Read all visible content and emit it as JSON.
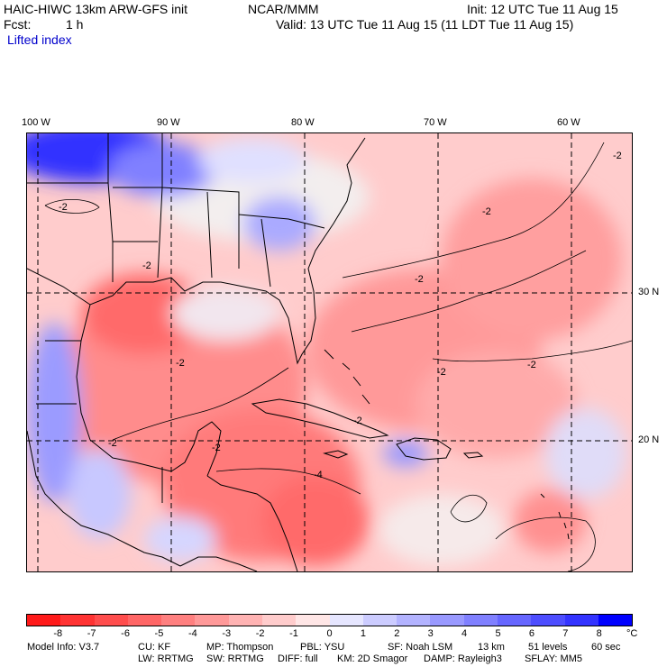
{
  "header": {
    "model": "HAIC-HIWC 13km ARW-GFS init",
    "org": "NCAR/MMM",
    "init": "Init: 12 UTC Tue 11 Aug 15",
    "fcst_label": "Fcst:",
    "fcst_value": "1 h",
    "valid": "Valid: 13 UTC Tue 11 Aug 15 (11 LDT Tue 11 Aug 15)",
    "field": "Lifted index"
  },
  "map": {
    "lon_labels": [
      "100 W",
      "90 W",
      "80 W",
      "70 W",
      "60 W"
    ],
    "lat_labels": [
      "30 N",
      "20 N"
    ],
    "contour_labels": [
      "-2",
      "-2",
      "-2",
      "-2",
      "-2",
      "-2",
      "-2",
      "-2",
      "-2",
      "-2",
      "-4",
      "-2"
    ],
    "colors": {
      "land_line": "#000000",
      "grid": "#000000"
    }
  },
  "colorbar": {
    "ticks": [
      "-8",
      "-7",
      "-6",
      "-5",
      "-4",
      "-3",
      "-2",
      "-1",
      "0",
      "1",
      "2",
      "3",
      "4",
      "5",
      "6",
      "7",
      "8"
    ],
    "unit": "°C",
    "colors": [
      "#ff1a1a",
      "#ff3333",
      "#ff4d4d",
      "#ff6666",
      "#ff8080",
      "#ff9999",
      "#ffb3b3",
      "#ffcccc",
      "#ffe6e6",
      "#e6e6ff",
      "#ccccff",
      "#b3b3ff",
      "#9999ff",
      "#8080ff",
      "#6666ff",
      "#4d4dff",
      "#3333ff",
      "#0000ff"
    ]
  },
  "footer": {
    "line1": [
      "Model Info: V3.7",
      "CU: KF",
      "MP: Thompson",
      "PBL: YSU",
      "SF: Noah LSM",
      "13 km",
      "51 levels",
      "60 sec"
    ],
    "line2": [
      "LW: RRTMG",
      "SW: RRTMG",
      "DIFF: full",
      "KM: 2D Smagor",
      "DAMP: Rayleigh3",
      "SFLAY: MM5"
    ]
  }
}
